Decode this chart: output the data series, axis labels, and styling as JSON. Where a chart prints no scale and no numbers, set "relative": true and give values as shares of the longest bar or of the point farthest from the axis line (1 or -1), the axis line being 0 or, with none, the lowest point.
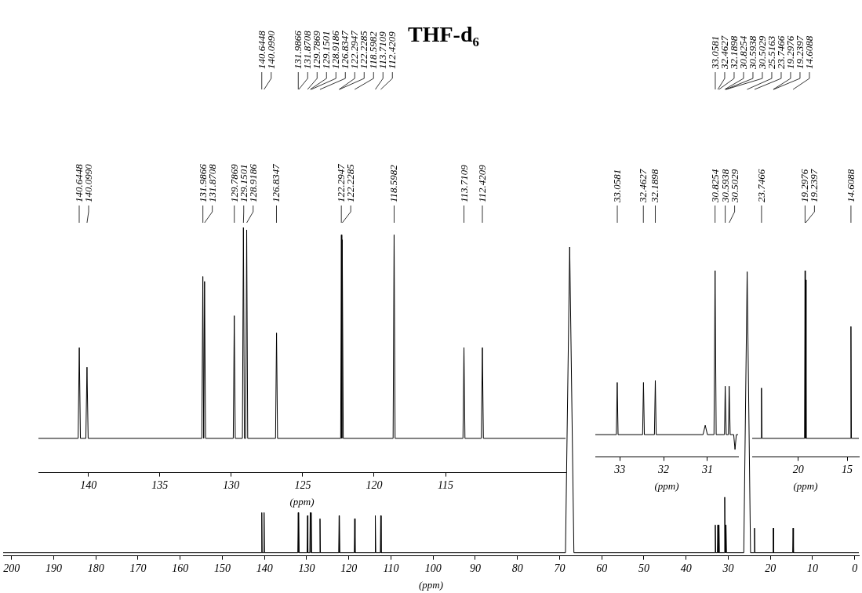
{
  "chart_data": [
    {
      "type": "line",
      "title": "THF-d₆",
      "xlabel": "(ppm)",
      "relative": true,
      "color": "#000000",
      "xlim": [
        202,
        -1
      ],
      "xticks": [
        200,
        190,
        180,
        170,
        160,
        150,
        140,
        130,
        120,
        110,
        100,
        90,
        80,
        70,
        60,
        50,
        40,
        30,
        20,
        10,
        0
      ],
      "x": [
        202,
        140.75,
        140.64,
        140.55,
        140.2,
        140.1,
        140.0,
        132.1,
        131.99,
        131.93,
        131.87,
        131.78,
        129.9,
        129.79,
        129.7,
        129.25,
        129.15,
        129.05,
        128.92,
        128.82,
        126.93,
        126.83,
        126.73,
        122.4,
        122.29,
        122.26,
        122.23,
        122.13,
        118.7,
        118.6,
        118.5,
        113.8,
        113.71,
        113.6,
        112.52,
        112.42,
        112.32,
        68.6,
        67.6,
        66.6,
        33.16,
        33.06,
        32.96,
        32.56,
        32.46,
        32.36,
        32.29,
        32.19,
        32.09,
        30.92,
        30.82,
        30.7,
        30.59,
        30.55,
        30.5,
        30.4,
        26.3,
        25.5,
        24.7,
        23.85,
        23.75,
        23.65,
        19.4,
        19.3,
        19.27,
        19.24,
        19.14,
        14.71,
        14.61,
        14.51,
        -1
      ],
      "values": [
        0.01,
        0.01,
        0.14,
        0.01,
        0.01,
        0.14,
        0.01,
        0.01,
        0.14,
        0.01,
        0.14,
        0.01,
        0.01,
        0.13,
        0.01,
        0.01,
        0.14,
        0.01,
        0.14,
        0.01,
        0.01,
        0.12,
        0.01,
        0.01,
        0.13,
        0.01,
        0.13,
        0.01,
        0.01,
        0.12,
        0.01,
        0.01,
        0.13,
        0.01,
        0.01,
        0.13,
        0.01,
        0.01,
        1.0,
        0.01,
        0.01,
        0.1,
        0.01,
        0.01,
        0.1,
        0.01,
        0.01,
        0.1,
        0.01,
        0.01,
        0.19,
        0.01,
        0.1,
        0.01,
        0.1,
        0.01,
        0.01,
        0.92,
        0.01,
        0.01,
        0.09,
        0.01,
        0.01,
        0.09,
        0.01,
        0.09,
        0.01,
        0.01,
        0.09,
        0.01,
        0.01
      ],
      "annotations": [
        {
          "text": "140.6448",
          "x": 140.6448
        },
        {
          "text": "140.0990",
          "x": 140.099
        },
        {
          "text": "131.9866",
          "x": 131.9866
        },
        {
          "text": "131.8708",
          "x": 131.8708
        },
        {
          "text": "129.7869",
          "x": 129.7869
        },
        {
          "text": "129.1501",
          "x": 129.1501
        },
        {
          "text": "128.9186",
          "x": 128.9186
        },
        {
          "text": "126.8347",
          "x": 126.8347
        },
        {
          "text": "122.2947",
          "x": 122.2947
        },
        {
          "text": "122.2285",
          "x": 122.2285
        },
        {
          "text": "118.5982",
          "x": 118.5982
        },
        {
          "text": "113.7109",
          "x": 113.7109
        },
        {
          "text": "112.4209",
          "x": 112.4209
        },
        {
          "text": "33.0581",
          "x": 33.0581
        },
        {
          "text": "32.4627",
          "x": 32.4627
        },
        {
          "text": "32.1898",
          "x": 32.1898
        },
        {
          "text": "30.8254",
          "x": 30.8254
        },
        {
          "text": "30.5938",
          "x": 30.5938
        },
        {
          "text": "30.5029",
          "x": 30.5029
        },
        {
          "text": "25.5163",
          "x": 25.5163
        },
        {
          "text": "23.7466",
          "x": 23.7466
        },
        {
          "text": "19.2976",
          "x": 19.2976
        },
        {
          "text": "19.2397",
          "x": 19.2397
        },
        {
          "text": "14.6088",
          "x": 14.6088
        }
      ]
    },
    {
      "type": "line",
      "xlabel": "(ppm)",
      "relative": true,
      "color": "#000000",
      "xlim": [
        143.5,
        106.6
      ],
      "xticks": [
        140,
        135,
        130,
        125,
        120,
        115
      ],
      "x": [
        143.5,
        140.72,
        140.64,
        140.56,
        140.18,
        140.1,
        140.02,
        132.06,
        131.99,
        131.93,
        131.87,
        131.8,
        129.86,
        129.79,
        129.72,
        129.22,
        129.15,
        129.08,
        128.99,
        128.92,
        128.85,
        126.9,
        126.83,
        126.76,
        122.34,
        122.29,
        122.26,
        122.23,
        122.16,
        118.67,
        118.6,
        118.53,
        113.78,
        113.71,
        113.64,
        112.49,
        112.42,
        112.35,
        106.6
      ],
      "values": [
        0.14,
        0.14,
        0.51,
        0.14,
        0.14,
        0.43,
        0.14,
        0.14,
        0.8,
        0.14,
        0.78,
        0.14,
        0.14,
        0.64,
        0.14,
        0.14,
        1.0,
        0.14,
        0.14,
        0.99,
        0.14,
        0.14,
        0.57,
        0.14,
        0.14,
        0.97,
        0.14,
        0.95,
        0.14,
        0.14,
        0.97,
        0.14,
        0.14,
        0.51,
        0.14,
        0.14,
        0.51,
        0.14,
        0.14
      ],
      "annotations": [
        {
          "text": "140.6448",
          "x": 140.6448
        },
        {
          "text": "140.0990",
          "x": 140.099
        },
        {
          "text": "131.9866",
          "x": 131.9866
        },
        {
          "text": "131.8708",
          "x": 131.8708
        },
        {
          "text": "129.7869",
          "x": 129.7869
        },
        {
          "text": "129.1501",
          "x": 129.1501
        },
        {
          "text": "128.9186",
          "x": 128.9186
        },
        {
          "text": "126.8347",
          "x": 126.8347
        },
        {
          "text": "122.2947",
          "x": 122.2947
        },
        {
          "text": "122.2285",
          "x": 122.2285
        },
        {
          "text": "118.5982",
          "x": 118.5982
        },
        {
          "text": "113.7109",
          "x": 113.7109
        },
        {
          "text": "112.4209",
          "x": 112.4209
        }
      ]
    },
    {
      "type": "line",
      "xlabel": "(ppm)",
      "relative": true,
      "color": "#000000",
      "xlim": [
        33.56,
        30.3
      ],
      "xticks": [
        33,
        32,
        31
      ],
      "x": [
        33.56,
        33.08,
        33.06,
        33.04,
        32.48,
        32.46,
        32.44,
        32.21,
        32.19,
        32.17,
        31.1,
        31.05,
        31.0,
        30.85,
        30.825,
        30.8,
        30.61,
        30.594,
        30.57,
        30.52,
        30.503,
        30.48,
        30.4,
        30.37,
        30.34,
        30.3
      ],
      "values": [
        0.12,
        0.12,
        0.4,
        0.12,
        0.12,
        0.4,
        0.12,
        0.12,
        0.41,
        0.12,
        0.12,
        0.17,
        0.12,
        0.12,
        1.0,
        0.12,
        0.12,
        0.38,
        0.12,
        0.12,
        0.38,
        0.12,
        0.12,
        0.04,
        0.12,
        0.12
      ],
      "annotations": [
        {
          "text": "33.0581",
          "x": 33.0581
        },
        {
          "text": "32.4627",
          "x": 32.4627
        },
        {
          "text": "32.1898",
          "x": 32.1898
        },
        {
          "text": "30.8254",
          "x": 30.8254
        },
        {
          "text": "30.5938",
          "x": 30.5938
        },
        {
          "text": "30.5029",
          "x": 30.5029
        }
      ]
    },
    {
      "type": "line",
      "xlabel": "(ppm)",
      "relative": true,
      "color": "#000000",
      "xlim": [
        24.7,
        13.8
      ],
      "xticks": [
        20,
        15
      ],
      "x": [
        24.7,
        23.8,
        23.75,
        23.7,
        19.35,
        19.3,
        19.27,
        19.24,
        19.19,
        14.66,
        14.61,
        14.56,
        13.8
      ],
      "values": [
        0.1,
        0.1,
        0.37,
        0.1,
        0.1,
        1.0,
        0.1,
        0.95,
        0.1,
        0.1,
        0.7,
        0.1,
        0.1
      ],
      "annotations": [
        {
          "text": "23.7466",
          "x": 23.7466
        },
        {
          "text": "19.2976",
          "x": 19.2976
        },
        {
          "text": "19.2397",
          "x": 19.2397
        },
        {
          "text": "14.6088",
          "x": 14.6088
        }
      ]
    }
  ]
}
